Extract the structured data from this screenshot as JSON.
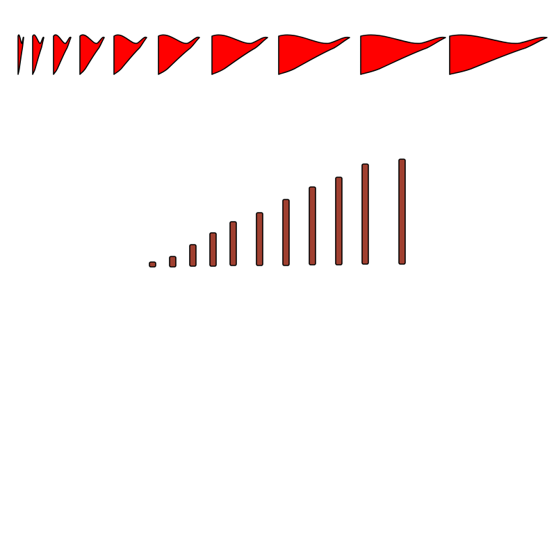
{
  "sprites": {
    "flag_fill": "#ff0000",
    "flag_outline": "#000000",
    "pole_fill": "#a04030",
    "pole_outline": "#000000",
    "flag_frame_count": 10,
    "pole_frame_count": 11
  }
}
